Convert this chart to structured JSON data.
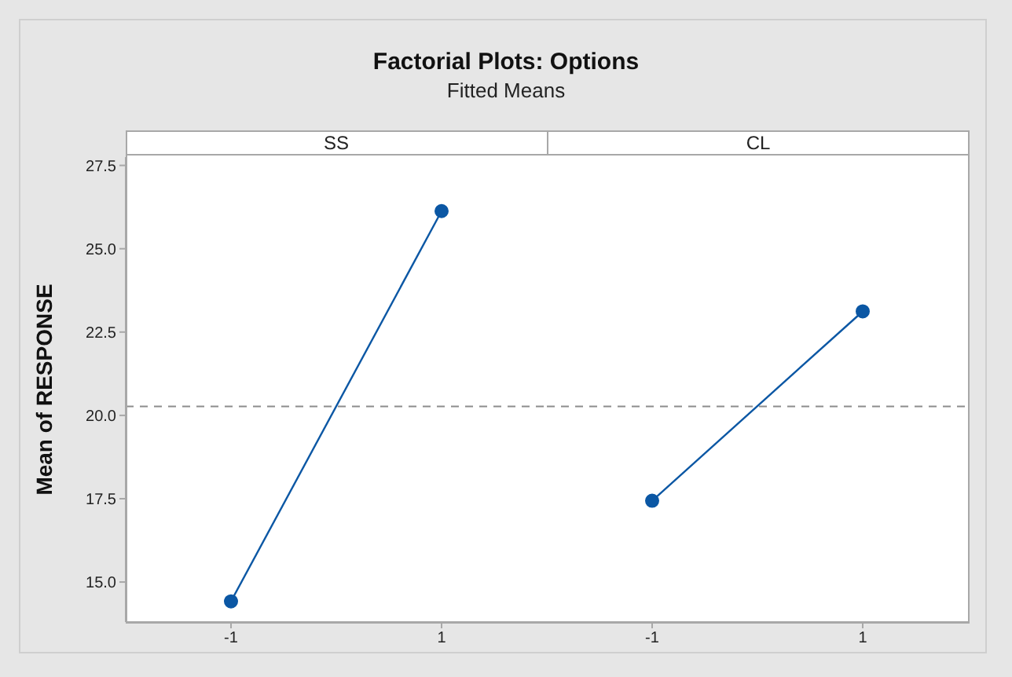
{
  "chart_data": [
    {
      "type": "line",
      "title": "Factorial Plots: Options",
      "subtitle": "Fitted Means",
      "ylabel": "Mean of RESPONSE",
      "xlabel": "SS",
      "categories": [
        "-1",
        "1"
      ],
      "series": [
        {
          "color": "#0b57a4",
          "values": [
            14.42,
            26.13
          ]
        }
      ],
      "ylim": [
        13.8,
        27.75
      ],
      "yticks": [
        {
          "value": 15,
          "label": "15.0"
        },
        {
          "value": 17.5,
          "label": "17.5"
        },
        {
          "value": 20,
          "label": "20.0"
        },
        {
          "value": 22.5,
          "label": "22.5"
        },
        {
          "value": 25,
          "label": "25.0"
        },
        {
          "value": 27.5,
          "label": "27.5"
        }
      ],
      "ref_lines": [
        {
          "axis": "y",
          "value": 20.27,
          "color": "#8c8c8c",
          "line_style": "dashed"
        }
      ],
      "marker": "circle",
      "line_style": "solid",
      "grid": false,
      "legend": false
    },
    {
      "type": "line",
      "xlabel": "CL",
      "categories": [
        "-1",
        "1"
      ],
      "series": [
        {
          "color": "#0b57a4",
          "values": [
            17.44,
            23.12
          ]
        }
      ],
      "ylim": [
        13.8,
        27.75
      ],
      "ref_lines": [
        {
          "axis": "y",
          "value": 20.27,
          "color": "#8c8c8c",
          "line_style": "dashed"
        }
      ],
      "marker": "circle",
      "line_style": "solid",
      "grid": false,
      "legend": false,
      "tick_labels": "x"
    }
  ]
}
